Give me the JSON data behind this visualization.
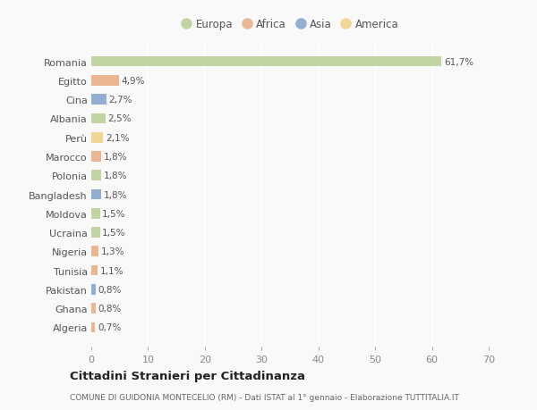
{
  "countries": [
    "Romania",
    "Egitto",
    "Cina",
    "Albania",
    "Perù",
    "Marocco",
    "Polonia",
    "Bangladesh",
    "Moldova",
    "Ucraina",
    "Nigeria",
    "Tunisia",
    "Pakistan",
    "Ghana",
    "Algeria"
  ],
  "values": [
    61.7,
    4.9,
    2.7,
    2.5,
    2.1,
    1.8,
    1.8,
    1.8,
    1.5,
    1.5,
    1.3,
    1.1,
    0.8,
    0.8,
    0.7
  ],
  "labels": [
    "61,7%",
    "4,9%",
    "2,7%",
    "2,5%",
    "2,1%",
    "1,8%",
    "1,8%",
    "1,8%",
    "1,5%",
    "1,5%",
    "1,3%",
    "1,1%",
    "0,8%",
    "0,8%",
    "0,7%"
  ],
  "continents": [
    "Europa",
    "Africa",
    "Asia",
    "Europa",
    "America",
    "Africa",
    "Europa",
    "Asia",
    "Europa",
    "Europa",
    "Africa",
    "Africa",
    "Asia",
    "Africa",
    "Africa"
  ],
  "continent_colors": {
    "Europa": "#b5cc8e",
    "Africa": "#e8a87c",
    "Asia": "#7b9ec9",
    "America": "#f0d080"
  },
  "legend_order": [
    "Europa",
    "Africa",
    "Asia",
    "America"
  ],
  "title": "Cittadini Stranieri per Cittadinanza",
  "subtitle": "COMUNE DI GUIDONIA MONTECELIO (RM) - Dati ISTAT al 1° gennaio - Elaborazione TUTTITALIA.IT",
  "xlim": [
    0,
    70
  ],
  "xticks": [
    0,
    10,
    20,
    30,
    40,
    50,
    60,
    70
  ],
  "background_color": "#f9f9f9",
  "bar_alpha": 0.82,
  "grid_color": "#ffffff",
  "bar_height": 0.55
}
